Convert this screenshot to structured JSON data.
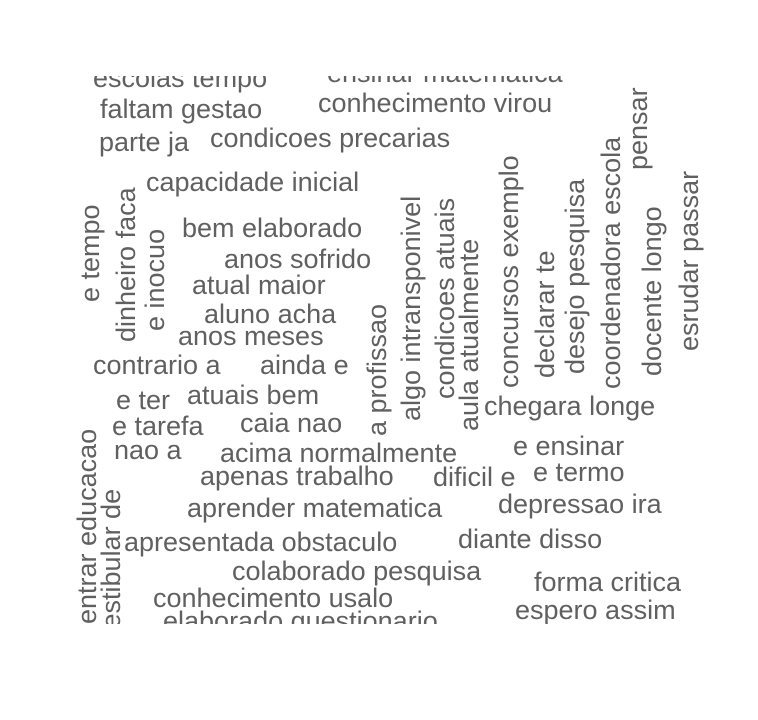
{
  "text_color": "#606060",
  "background": "#ffffff",
  "words": {
    "h1": "escolas tempo",
    "h2": "ensinar matematica",
    "h3": "faltam gestao",
    "h4": "conhecimento virou",
    "h5": "parte ja",
    "h6": "condicoes precarias",
    "h7": "capacidade inicial",
    "h8": "bem elaborado",
    "h9": "anos sofrido",
    "h10": "atual maior",
    "h11": "aluno acha",
    "h12": "anos meses",
    "h13": "contrario a",
    "h14": "ainda e",
    "h15": "e ter",
    "h16": "atuais bem",
    "h17": "e tarefa",
    "h18": "caia nao",
    "h19": "nao a",
    "h20": "acima normalmente",
    "h21": "e ensinar",
    "h22": "apenas trabalho",
    "h23": "dificil e",
    "h24": "e termo",
    "h25": "chegara longe",
    "h26": "aprender matematica",
    "h27": "depressao ira",
    "h28": "apresentada obstaculo",
    "h29": "diante disso",
    "h30": "colaborado pesquisa",
    "h31": "forma critica",
    "h32": "conhecimento usalo",
    "h33": "espero assim",
    "h34": "elaborado questionario",
    "v1": "e tempo",
    "v2": "dinheiro faca",
    "v3": "e inocuo",
    "v4": "a profissao",
    "v5": "algo intransponivel",
    "v6": "condicoes atuais",
    "v7": "aula atualmente",
    "v8": "concursos exemplo",
    "v9": "declarar te",
    "v10": "desejo pesquisa",
    "v11": "coordenadora escola",
    "v12": "pensar",
    "v13": "docente longo",
    "v14": "esrudar passar",
    "v15": "entrar educacao",
    "v16": "vestibular de"
  }
}
